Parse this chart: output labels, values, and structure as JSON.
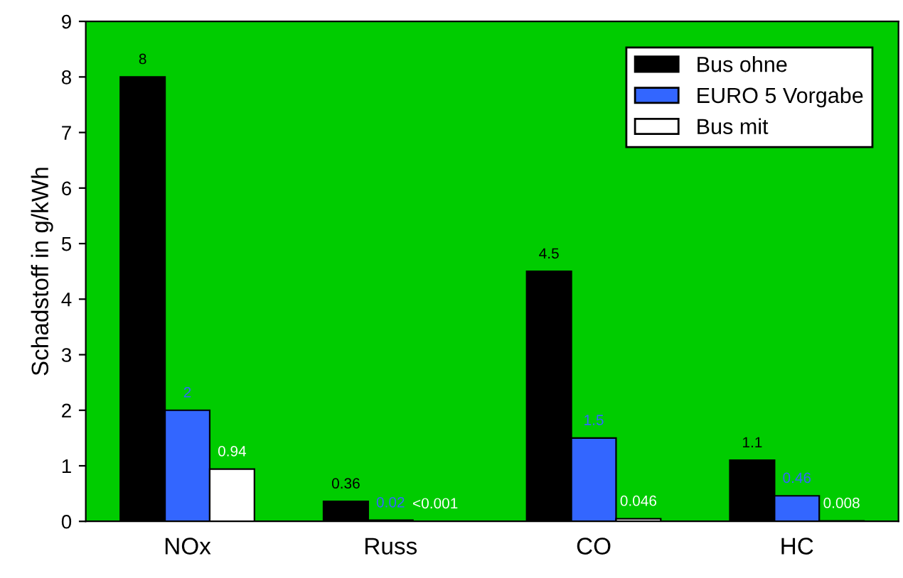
{
  "chart_data": {
    "type": "bar",
    "ylabel": "Schadstoff in g/kWh",
    "categories": [
      "NOx",
      "Russ",
      "CO",
      "HC"
    ],
    "series": [
      {
        "name": "Bus ohne",
        "color": "#000000",
        "values": [
          8,
          0.36,
          4.5,
          1.1
        ],
        "value_labels": [
          "8",
          "0.36",
          "4.5",
          "1.1"
        ]
      },
      {
        "name": "EURO 5 Vorgabe",
        "color": "#3366ff",
        "values": [
          2,
          0.02,
          1.5,
          0.46
        ],
        "value_labels": [
          "2",
          "0.02",
          "1.5",
          "0.46"
        ]
      },
      {
        "name": "Bus mit",
        "color": "#ffffff",
        "values": [
          0.94,
          0.001,
          0.046,
          0.008
        ],
        "value_labels": [
          "0.94",
          "<0.001",
          "0.046",
          "0.008"
        ]
      }
    ],
    "ylim": [
      0,
      9
    ],
    "yticks": [
      0,
      1,
      2,
      3,
      4,
      5,
      6,
      7,
      8,
      9
    ],
    "grid": false,
    "legend": "top right"
  }
}
